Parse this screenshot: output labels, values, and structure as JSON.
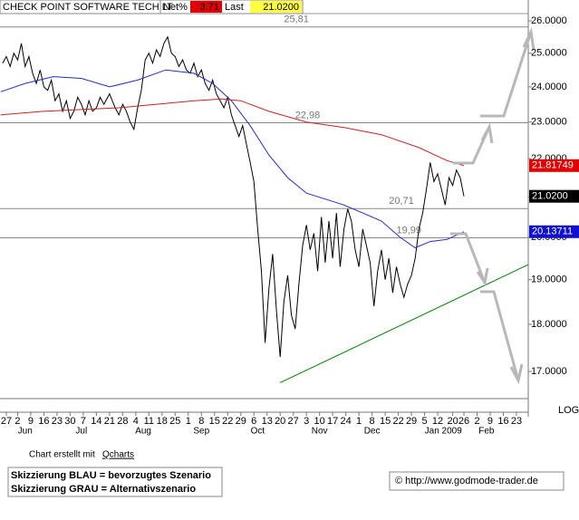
{
  "header": {
    "title": "CHECK POINT SOFTWARE TECH LT",
    "net_label": "Net%",
    "net_value": 3.71,
    "last_label": "Last",
    "last_value": {
      "value": 21.02,
      "label": "21.0200"
    }
  },
  "chart_data": {
    "type": "line",
    "log_scale": true,
    "scale_label": "LOG",
    "xlim": [
      -3.4,
      278.3
    ],
    "ylim": [
      16.45,
      26.23
    ],
    "yticks": [
      {
        "value": 26,
        "label": "26.0000"
      },
      {
        "value": 25,
        "label": "25.0000"
      },
      {
        "value": 24,
        "label": "24.0000"
      },
      {
        "value": 23,
        "label": "23.0000"
      },
      {
        "value": 22,
        "label": "22.0000"
      },
      {
        "value": 21,
        "label": "21.0000"
      },
      {
        "value": 20,
        "label": "20.0000"
      },
      {
        "value": 19,
        "label": "19.0000"
      },
      {
        "value": 18,
        "label": "18.0000"
      },
      {
        "value": 17,
        "label": "17.0000"
      }
    ],
    "xticks": [
      {
        "value": 0,
        "label": "27"
      },
      {
        "value": 6,
        "label": "2"
      },
      {
        "value": 13,
        "label": "9"
      },
      {
        "value": 20,
        "label": "16"
      },
      {
        "value": 27,
        "label": "23"
      },
      {
        "value": 34,
        "label": "30"
      },
      {
        "value": 41,
        "label": "7"
      },
      {
        "value": 48,
        "label": "14"
      },
      {
        "value": 55,
        "label": "21"
      },
      {
        "value": 62,
        "label": "28"
      },
      {
        "value": 69,
        "label": "4"
      },
      {
        "value": 76,
        "label": "11"
      },
      {
        "value": 83,
        "label": "18"
      },
      {
        "value": 90,
        "label": "25"
      },
      {
        "value": 97,
        "label": "1"
      },
      {
        "value": 104,
        "label": "8"
      },
      {
        "value": 111,
        "label": "15"
      },
      {
        "value": 118,
        "label": "22"
      },
      {
        "value": 125,
        "label": "29"
      },
      {
        "value": 132,
        "label": "6"
      },
      {
        "value": 139,
        "label": "13"
      },
      {
        "value": 146,
        "label": "20"
      },
      {
        "value": 153,
        "label": "27"
      },
      {
        "value": 160,
        "label": "3"
      },
      {
        "value": 167,
        "label": "10"
      },
      {
        "value": 174,
        "label": "17"
      },
      {
        "value": 181,
        "label": "24"
      },
      {
        "value": 188,
        "label": "1"
      },
      {
        "value": 195,
        "label": "8"
      },
      {
        "value": 202,
        "label": "15"
      },
      {
        "value": 209,
        "label": "22"
      },
      {
        "value": 216,
        "label": "29"
      },
      {
        "value": 223,
        "label": "5"
      },
      {
        "value": 230,
        "label": "12"
      },
      {
        "value": 238,
        "label": "20"
      },
      {
        "value": 244,
        "label": "26"
      },
      {
        "value": 251,
        "label": "2"
      },
      {
        "value": 258,
        "label": "9"
      },
      {
        "value": 265,
        "label": "16"
      },
      {
        "value": 272,
        "label": "23"
      }
    ],
    "month_labels": [
      {
        "value": 10,
        "label": "Jun"
      },
      {
        "value": 40,
        "label": "Jul"
      },
      {
        "value": 73,
        "label": "Aug"
      },
      {
        "value": 104,
        "label": "Sep"
      },
      {
        "value": 134,
        "label": "Oct"
      },
      {
        "value": 167,
        "label": "Nov"
      },
      {
        "value": 195,
        "label": "Dec"
      },
      {
        "value": 233,
        "label": "Jan 2009"
      },
      {
        "value": 256,
        "label": "Feb"
      }
    ],
    "series": [
      {
        "color": "#000000",
        "x": [
          -2,
          0,
          2,
          4,
          6,
          8,
          10,
          12,
          14,
          16,
          18,
          20,
          22,
          24,
          26,
          28,
          30,
          32,
          34,
          36,
          38,
          40,
          42,
          44,
          46,
          48,
          50,
          52,
          55,
          58,
          60,
          62,
          64,
          66,
          68,
          70,
          72,
          74,
          76,
          78,
          80,
          82,
          84,
          86,
          88,
          90,
          92,
          94,
          96,
          98,
          100,
          102,
          104,
          106,
          108,
          110,
          112,
          114,
          116,
          118,
          120,
          122,
          124,
          126,
          128,
          130,
          132,
          134,
          136,
          138,
          140,
          142,
          144,
          146,
          148,
          150,
          152,
          154,
          156,
          158,
          160,
          162,
          164,
          166,
          168,
          170,
          172,
          174,
          176,
          178,
          180,
          182,
          184,
          186,
          188,
          190,
          192,
          194,
          196,
          198,
          200,
          202,
          204,
          206,
          208,
          210,
          212,
          214,
          216,
          218,
          220,
          222,
          224,
          226,
          228,
          230,
          232,
          234,
          236,
          238,
          240,
          242,
          244
        ],
        "values": [
          24.7,
          24.9,
          24.6,
          25.0,
          24.8,
          25.3,
          24.6,
          24.9,
          24.4,
          24.1,
          24.5,
          24.0,
          23.9,
          24.2,
          23.6,
          23.8,
          23.3,
          23.6,
          23.1,
          23.3,
          23.7,
          23.5,
          23.2,
          23.6,
          23.3,
          23.4,
          23.7,
          23.5,
          23.8,
          23.4,
          23.2,
          23.5,
          23.3,
          23.0,
          22.8,
          23.4,
          23.9,
          24.8,
          25.0,
          24.7,
          25.1,
          24.9,
          25.3,
          25.5,
          25.0,
          24.9,
          24.6,
          24.8,
          24.5,
          24.4,
          24.7,
          24.3,
          24.5,
          24.1,
          23.9,
          24.2,
          23.8,
          23.6,
          23.4,
          23.7,
          23.2,
          22.9,
          22.6,
          22.9,
          22.4,
          21.9,
          21.4,
          20.2,
          19.2,
          17.6,
          18.8,
          19.6,
          18.3,
          17.3,
          18.5,
          19.1,
          18.2,
          17.9,
          18.9,
          19.8,
          20.3,
          19.7,
          20.1,
          19.2,
          20.5,
          19.4,
          20.4,
          19.5,
          20.6,
          19.3,
          20.2,
          20.7,
          20.4,
          19.7,
          19.3,
          20.2,
          19.8,
          19.4,
          18.4,
          19.2,
          19.7,
          19.0,
          19.5,
          18.7,
          19.3,
          18.9,
          18.6,
          18.9,
          19.1,
          19.5,
          20.2,
          20.6,
          21.2,
          21.9,
          21.4,
          21.6,
          21.2,
          20.8,
          21.5,
          21.3,
          21.7,
          21.5,
          21.02
        ]
      },
      {
        "color": "#2030c0",
        "x": [
          -3,
          10,
          25,
          40,
          55,
          70,
          85,
          100,
          110,
          120,
          130,
          140,
          150,
          160,
          170,
          180,
          190,
          200,
          210,
          218,
          226,
          235,
          244
        ],
        "values": [
          23.86,
          24.1,
          24.3,
          24.25,
          24.0,
          24.2,
          24.5,
          24.4,
          24.1,
          23.6,
          22.9,
          22.1,
          21.5,
          21.1,
          20.95,
          20.8,
          20.6,
          20.4,
          20.0,
          19.75,
          19.9,
          19.95,
          20.13711
        ]
      },
      {
        "color": "#d02020",
        "x": [
          -3,
          20,
          40,
          60,
          80,
          100,
          115,
          125,
          140,
          160,
          180,
          200,
          220,
          235,
          244
        ],
        "values": [
          23.2,
          23.3,
          23.35,
          23.4,
          23.5,
          23.6,
          23.65,
          23.6,
          23.3,
          23.0,
          22.85,
          22.65,
          22.3,
          21.95,
          21.81749
        ]
      }
    ],
    "levels": [
      {
        "value": 25.81,
        "label": "25,81",
        "x": 148
      },
      {
        "value": 22.98,
        "label": "22,98",
        "x": 154
      },
      {
        "value": 20.71,
        "label": "20,71",
        "x": 204
      },
      {
        "value": 19.99,
        "label": "19,99",
        "x": 208
      }
    ],
    "trendline": {
      "color": "#008000",
      "x": [
        146,
        278.3
      ],
      "values": [
        16.77,
        19.35
      ]
    },
    "price_tags": [
      {
        "value": 21.81749,
        "label": "21.81749",
        "color": "#e00000",
        "text_color": "#ffffff"
      },
      {
        "value": 21.02,
        "label": "21.0200",
        "color": "#000000",
        "text_color": "#ffffff"
      },
      {
        "value": 20.13711,
        "label": "20.13711",
        "color": "#1010d0",
        "text_color": "#ffffff"
      }
    ]
  },
  "footer": {
    "credit": "Chart erstellt mit",
    "credit_link": "Qcharts",
    "note_blue": "Skizzierung BLAU = bevorzugtes Szenario",
    "note_grey": "Skizzierung GRAU = Alternativszenario",
    "copyright": "© http://www.godmode-trader.de"
  }
}
